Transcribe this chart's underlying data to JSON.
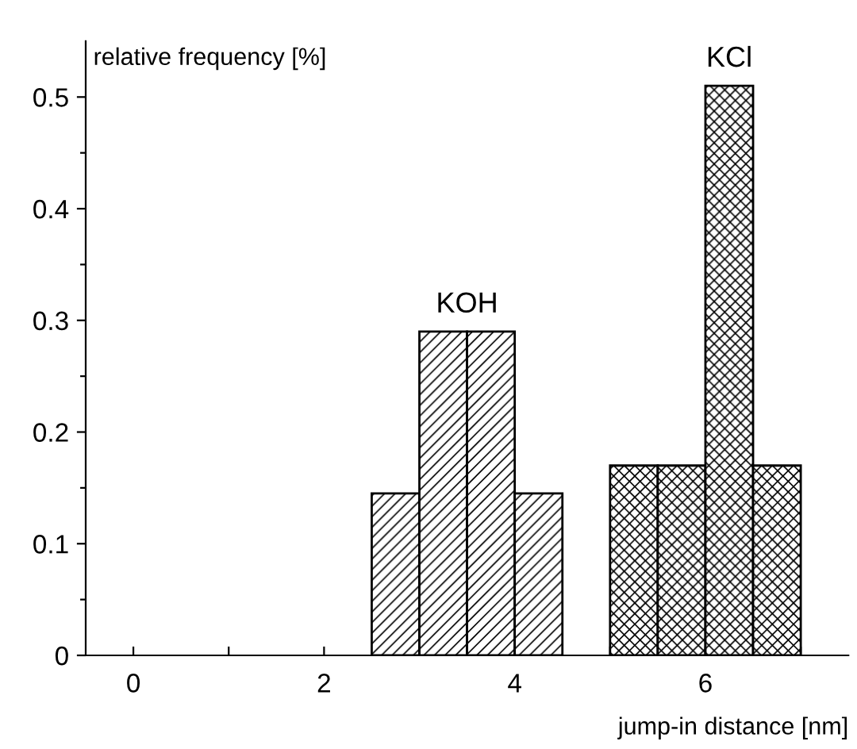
{
  "chart_data": {
    "type": "bar",
    "xlabel": "jump-in distance [nm]",
    "ylabel": "relative frequency [%]",
    "series": [
      {
        "name": "KOH",
        "color": "#000000",
        "x": [
          2.75,
          3.25,
          3.75,
          4.25
        ],
        "values": [
          0.145,
          0.29,
          0.29,
          0.145
        ]
      },
      {
        "name": "KCl",
        "color": "#000000",
        "x": [
          5.25,
          5.75,
          6.25,
          6.75
        ],
        "values": [
          0.17,
          0.17,
          0.51,
          0.17
        ]
      }
    ],
    "xlim": [
      -0.5,
      7.5
    ],
    "ylim": [
      0,
      0.55
    ],
    "xticks": [
      0,
      {
        "value": 1,
        "label": null
      },
      2,
      {
        "value": 3,
        "label": null
      },
      4,
      {
        "value": 5,
        "label": null
      },
      6,
      {
        "value": 7,
        "label": null
      }
    ],
    "yticks": [
      0,
      {
        "value": 0.05,
        "label": null
      },
      0.1,
      {
        "value": 0.15,
        "label": null
      },
      0.2,
      {
        "value": 0.25,
        "label": null
      },
      0.3,
      {
        "value": 0.35,
        "label": null
      },
      0.4,
      {
        "value": 0.45,
        "label": null
      },
      0.5
    ],
    "grid": false,
    "legend": false
  }
}
